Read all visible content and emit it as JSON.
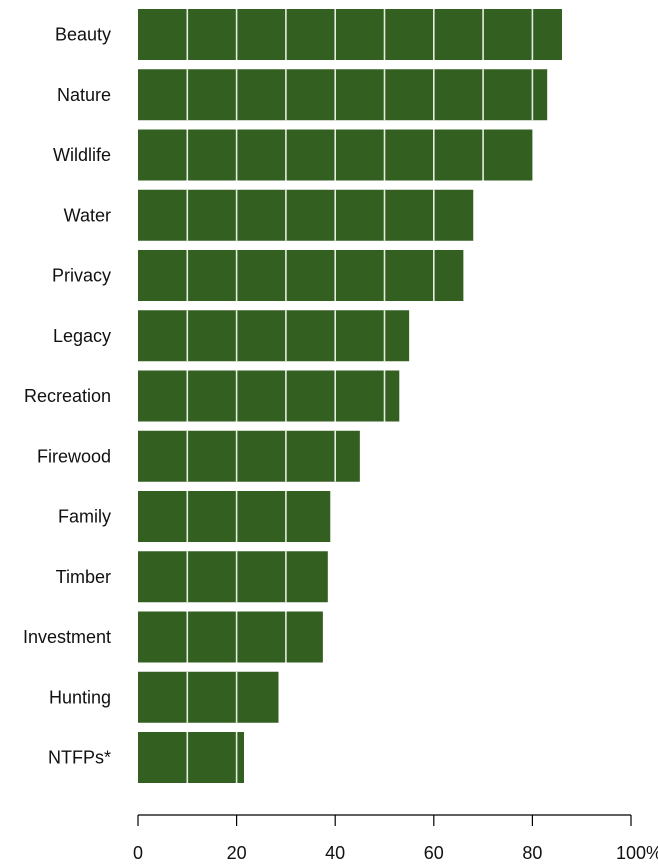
{
  "chart_data": {
    "type": "bar",
    "orientation": "horizontal",
    "title": "",
    "xlabel": "",
    "ylabel": "",
    "categories": [
      "Beauty",
      "Nature",
      "Wildlife",
      "Water",
      "Privacy",
      "Legacy",
      "Recreation",
      "Firewood",
      "Family",
      "Timber",
      "Investment",
      "Hunting",
      "NTFPs*"
    ],
    "values": [
      86,
      83,
      80,
      68,
      66,
      55,
      53,
      45,
      39,
      38.5,
      37.5,
      28.5,
      21.5
    ],
    "xlim": [
      0,
      100
    ],
    "x_ticks": [
      "0",
      "20",
      "40",
      "60",
      "80",
      "100%"
    ],
    "x_tick_values": [
      0,
      20,
      40,
      60,
      80,
      100
    ],
    "bar_color": "#336020",
    "bar_divider_color": "#e6ecdf",
    "bar_divider_step": 10,
    "grid": false,
    "legend": "none"
  }
}
